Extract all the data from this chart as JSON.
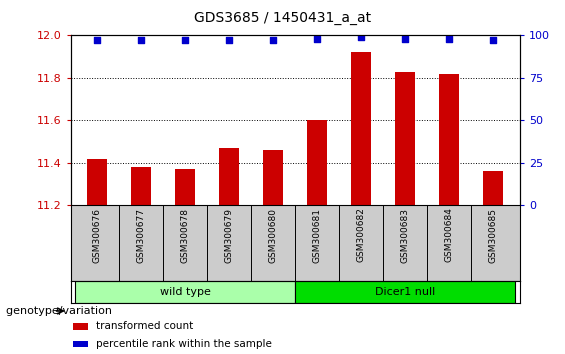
{
  "title": "GDS3685 / 1450431_a_at",
  "samples": [
    "GSM300676",
    "GSM300677",
    "GSM300678",
    "GSM300679",
    "GSM300680",
    "GSM300681",
    "GSM300682",
    "GSM300683",
    "GSM300684",
    "GSM300685"
  ],
  "transformed_counts": [
    11.42,
    11.38,
    11.37,
    11.47,
    11.46,
    11.6,
    11.92,
    11.83,
    11.82,
    11.36
  ],
  "percentile_ranks": [
    97,
    97,
    97,
    97,
    97,
    98,
    99,
    98,
    98,
    97
  ],
  "ylim_left": [
    11.2,
    12.0
  ],
  "ylim_right": [
    0,
    100
  ],
  "yticks_left": [
    11.2,
    11.4,
    11.6,
    11.8,
    12.0
  ],
  "yticks_right": [
    0,
    25,
    50,
    75,
    100
  ],
  "bar_color": "#cc0000",
  "dot_color": "#0000cc",
  "groups": [
    {
      "label": "wild type",
      "indices": [
        0,
        1,
        2,
        3,
        4
      ],
      "color": "#aaffaa"
    },
    {
      "label": "Dicer1 null",
      "indices": [
        5,
        6,
        7,
        8,
        9
      ],
      "color": "#00dd00"
    }
  ],
  "xtick_bg": "#cccccc",
  "group_label": "genotype/variation",
  "legend_items": [
    {
      "color": "#cc0000",
      "label": "transformed count"
    },
    {
      "color": "#0000cc",
      "label": "percentile rank within the sample"
    }
  ],
  "background_color": "#ffffff",
  "tick_label_color_left": "#cc0000",
  "tick_label_color_right": "#0000cc"
}
